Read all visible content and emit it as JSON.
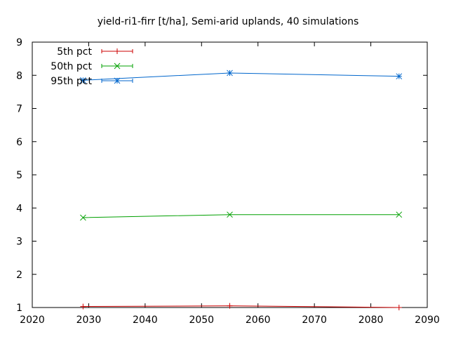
{
  "chart_data": {
    "type": "line",
    "title": "yield-ri1-firr [t/ha], Semi-arid uplands, 40 simulations",
    "xlabel": "",
    "ylabel": "",
    "xlim": [
      2020,
      2090
    ],
    "ylim": [
      1,
      9
    ],
    "xticks": [
      2020,
      2030,
      2040,
      2050,
      2060,
      2070,
      2080,
      2090
    ],
    "yticks": [
      1,
      2,
      3,
      4,
      5,
      6,
      7,
      8,
      9
    ],
    "grid": false,
    "legend_position": "top-left",
    "x": [
      2029,
      2055,
      2085
    ],
    "series": [
      {
        "name": "5th pct",
        "values": [
          1.03,
          1.05,
          1.0
        ],
        "color": "#cc0000",
        "marker": "plus"
      },
      {
        "name": "50th pct",
        "values": [
          3.71,
          3.8,
          3.8
        ],
        "color": "#00a000",
        "marker": "cross"
      },
      {
        "name": "95th pct",
        "values": [
          7.85,
          8.07,
          7.97
        ],
        "color": "#0066cc",
        "marker": "star"
      }
    ]
  }
}
